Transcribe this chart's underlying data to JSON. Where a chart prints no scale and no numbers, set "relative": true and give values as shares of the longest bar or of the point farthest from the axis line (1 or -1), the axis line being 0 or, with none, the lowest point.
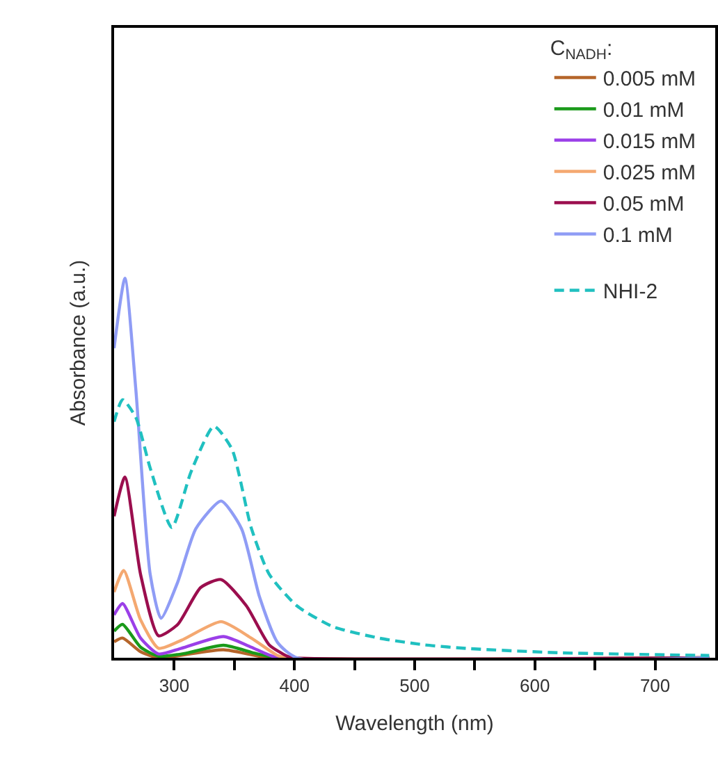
{
  "chart_data": {
    "type": "line",
    "relative": true,
    "xlabel": "Wavelength (nm)",
    "ylabel": "Absorbance (a.u.)",
    "legend_title": "C$_{NADH}$:",
    "legend": "top right",
    "tick_labels": "x",
    "marker": "none",
    "xlim": [
      250,
      750
    ],
    "xticks": [
      300,
      {
        "value": 350,
        "label": null
      },
      400,
      {
        "value": 450,
        "label": null
      },
      500,
      {
        "value": 550,
        "label": null
      },
      600,
      {
        "value": 650,
        "label": null
      },
      700
    ],
    "series": [
      {
        "name": "0.005 mM",
        "color": "#b5652a",
        "x": [
          250,
          257,
          272,
          287,
          341,
          379,
          745
        ],
        "values": [
          0.042,
          0.052,
          0.016,
          0.0,
          0.021,
          0.0,
          0.0
        ]
      },
      {
        "name": "0.01 mM",
        "color": "#1a9a1a",
        "x": [
          250,
          257,
          272,
          287,
          310,
          341,
          367,
          386,
          745
        ],
        "values": [
          0.07,
          0.088,
          0.028,
          0.004,
          0.012,
          0.033,
          0.012,
          0.0,
          0.0
        ]
      },
      {
        "name": "0.015 mM",
        "color": "#9b3fe8",
        "x": [
          250,
          257,
          272,
          287,
          306,
          341,
          364,
          386,
          745
        ],
        "values": [
          0.113,
          0.143,
          0.052,
          0.01,
          0.025,
          0.056,
          0.028,
          0.0,
          0.0
        ]
      },
      {
        "name": "0.025 mM",
        "color": "#f4a870",
        "x": [
          250,
          258,
          272,
          287,
          306,
          339,
          364,
          386,
          394,
          745
        ],
        "values": [
          0.173,
          0.23,
          0.1,
          0.025,
          0.046,
          0.095,
          0.052,
          0.006,
          0.0,
          0.0
        ]
      },
      {
        "name": "0.05 mM",
        "color": "#9b0e4e",
        "x": [
          250,
          259,
          272,
          287,
          303,
          322,
          339,
          360,
          379,
          394,
          398,
          745
        ],
        "values": [
          0.373,
          0.476,
          0.22,
          0.058,
          0.088,
          0.185,
          0.206,
          0.137,
          0.034,
          0.004,
          0.0,
          0.0
        ]
      },
      {
        "name": "0.1 mM",
        "color": "#8f9cf5",
        "x": [
          250,
          259,
          268,
          280,
          289,
          303,
          318,
          339,
          356,
          371,
          386,
          402,
          745
        ],
        "values": [
          0.816,
          1.0,
          0.71,
          0.22,
          0.104,
          0.2,
          0.34,
          0.413,
          0.34,
          0.16,
          0.04,
          0.0,
          0.0
        ]
      },
      {
        "name": "NHI-2",
        "color": "#20c0c0",
        "line_style": "dashed",
        "x": [
          250,
          257,
          268,
          280,
          298,
          314,
          333,
          348,
          364,
          379,
          402,
          432,
          470,
          508,
          546,
          622,
          745
        ],
        "values": [
          0.622,
          0.68,
          0.634,
          0.5,
          0.343,
          0.49,
          0.61,
          0.55,
          0.343,
          0.22,
          0.137,
          0.082,
          0.052,
          0.034,
          0.024,
          0.013,
          0.006
        ]
      }
    ]
  }
}
